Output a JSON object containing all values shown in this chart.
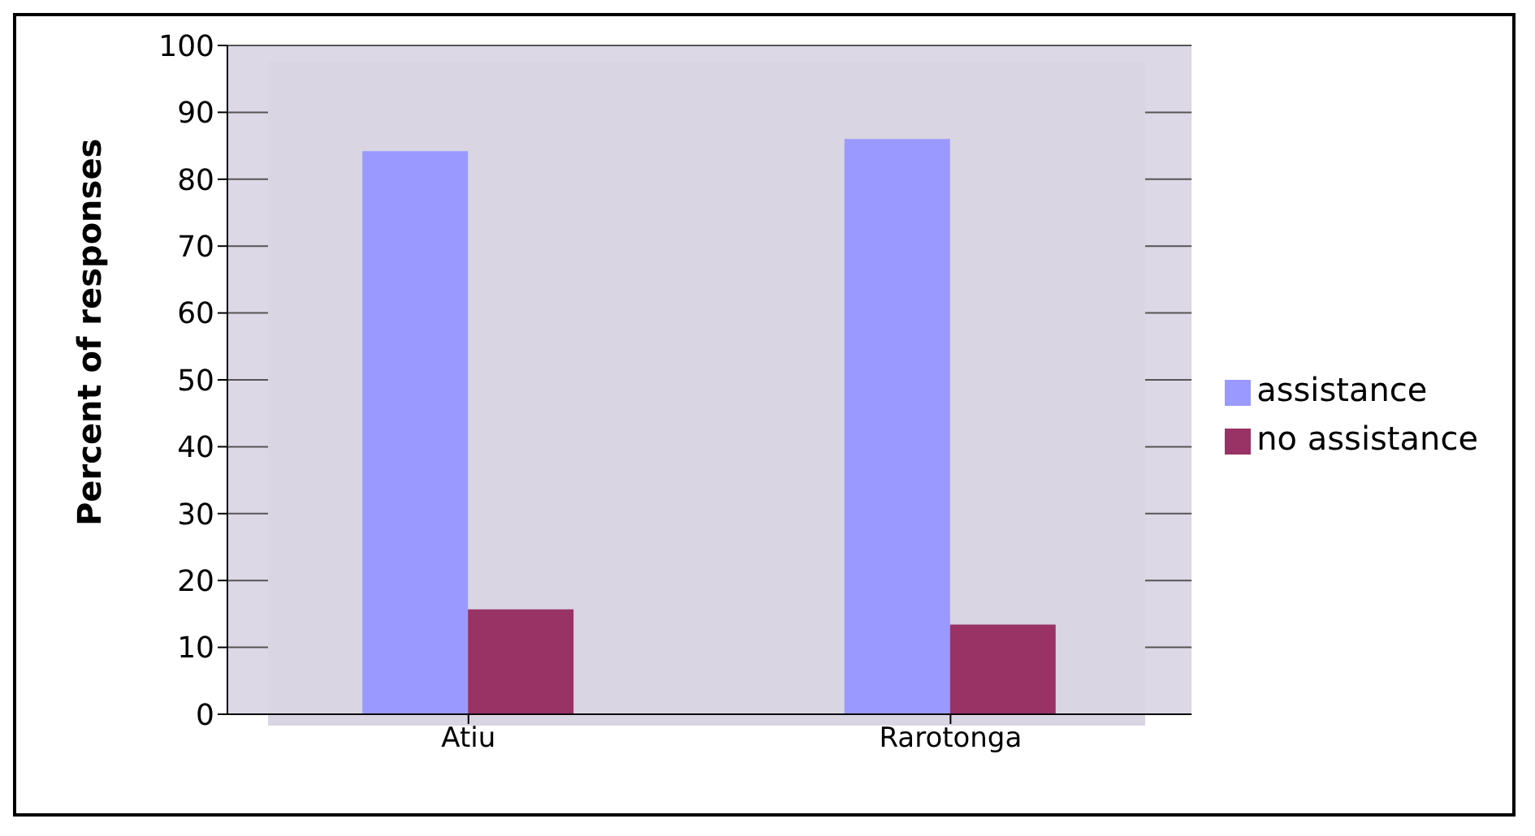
{
  "chart_data": {
    "type": "bar",
    "ylabel": "Percent of responses",
    "categories": [
      "Atiu",
      "Rarotonga"
    ],
    "series": [
      {
        "name": "assistance",
        "color": "#9999ff",
        "values": [
          84.2,
          86
        ]
      },
      {
        "name": "no assistance",
        "color": "#993366",
        "values": [
          15.7,
          13.4
        ]
      }
    ],
    "ylim": [
      0,
      100
    ],
    "yticks": [
      0,
      10,
      20,
      30,
      40,
      50,
      60,
      70,
      80,
      90,
      100
    ],
    "grid": "y",
    "legend": "right"
  }
}
